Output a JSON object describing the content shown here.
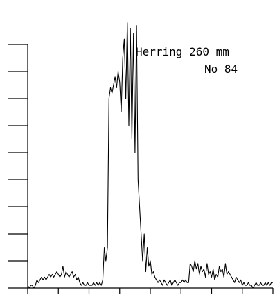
{
  "chart_data": {
    "type": "line",
    "title": "",
    "xlabel": "",
    "ylabel": "",
    "annotations": [
      "Herring 260 mm",
      "No 84"
    ],
    "grid": false,
    "legend": "none",
    "xlim": [
      0,
      160
    ],
    "ylim": [
      0,
      100
    ],
    "x_ticks": [
      0,
      20,
      40,
      60,
      80,
      100,
      120,
      140,
      160
    ],
    "y_ticks": [
      0,
      10,
      20,
      30,
      40,
      50,
      60,
      70,
      80,
      90
    ],
    "line_color": "#000000",
    "series": [
      {
        "x": [
          0,
          1,
          2,
          3,
          4,
          5,
          6,
          7,
          8,
          9,
          10,
          11,
          12,
          13,
          14,
          15,
          16,
          17,
          18,
          19,
          20,
          21,
          22,
          23,
          24,
          25,
          26,
          27,
          28,
          29,
          30,
          31,
          32,
          33,
          34,
          35,
          36,
          37,
          38,
          39,
          40,
          41,
          42,
          43,
          44,
          45,
          46,
          47,
          48,
          49,
          50,
          51,
          52,
          53,
          54,
          55,
          56,
          57,
          58,
          59,
          60,
          61,
          62,
          63,
          64,
          65,
          66,
          67,
          68,
          69,
          70,
          71,
          72,
          73,
          74,
          75,
          76,
          77,
          78,
          79,
          80,
          81,
          82,
          83,
          84,
          85,
          86,
          87,
          88,
          89,
          90,
          91,
          92,
          93,
          94,
          95,
          96,
          97,
          98,
          99,
          100,
          101,
          102,
          103,
          104,
          105,
          106,
          107,
          108,
          109,
          110,
          111,
          112,
          113,
          114,
          115,
          116,
          117,
          118,
          119,
          120,
          121,
          122,
          123,
          124,
          125,
          126,
          127,
          128,
          129,
          130,
          131,
          132,
          133,
          134,
          135,
          136,
          137,
          138,
          139,
          140,
          141,
          142,
          143,
          144,
          145,
          146,
          147,
          148,
          149,
          150,
          151,
          152,
          153,
          154,
          155,
          156,
          157,
          158,
          159,
          160
        ],
        "y": [
          1,
          0,
          1,
          1,
          0,
          1,
          3,
          2,
          3,
          4,
          3,
          4,
          3,
          4,
          5,
          4,
          5,
          4,
          5,
          6,
          5,
          4,
          5,
          8,
          4,
          6,
          5,
          4,
          5,
          6,
          4,
          5,
          3,
          4,
          2,
          1,
          2,
          1,
          1,
          2,
          1,
          1,
          1,
          2,
          1,
          2,
          1,
          2,
          1,
          3,
          15,
          10,
          15,
          70,
          74,
          72,
          75,
          78,
          74,
          80,
          76,
          65,
          85,
          92,
          70,
          98,
          60,
          96,
          55,
          94,
          50,
          97,
          40,
          30,
          20,
          10,
          20,
          6,
          15,
          8,
          10,
          5,
          6,
          4,
          3,
          2,
          3,
          2,
          1,
          3,
          2,
          1,
          2,
          3,
          1,
          2,
          3,
          2,
          1,
          2,
          2,
          3,
          2,
          3,
          2,
          2,
          9,
          8,
          6,
          10,
          7,
          9,
          5,
          8,
          6,
          7,
          4,
          9,
          5,
          6,
          4,
          7,
          3,
          5,
          4,
          8,
          6,
          7,
          4,
          9,
          5,
          6,
          5,
          4,
          3,
          2,
          4,
          3,
          2,
          3,
          1,
          2,
          1,
          1,
          2,
          1,
          1,
          0,
          1,
          2,
          1,
          1,
          2,
          1,
          1,
          2,
          1,
          2,
          1,
          2,
          2
        ]
      }
    ]
  }
}
